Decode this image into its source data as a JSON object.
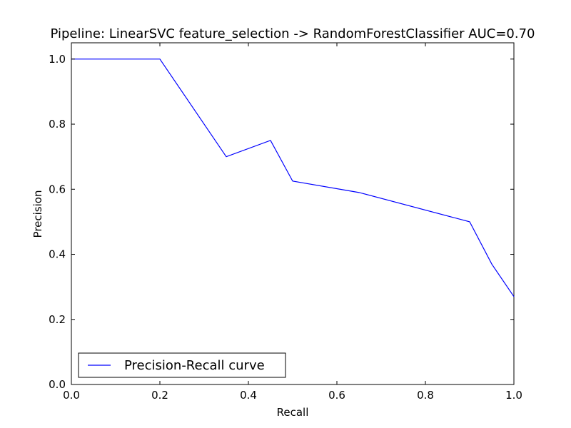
{
  "chart_data": {
    "type": "line",
    "title": "Pipeline: LinearSVC feature_selection -> RandomForestClassifier AUC=0.70",
    "xlabel": "Recall",
    "ylabel": "Precision",
    "xlim": [
      0.0,
      1.0
    ],
    "ylim": [
      0.0,
      1.05
    ],
    "xticks": [
      0.0,
      0.2,
      0.4,
      0.6,
      0.8,
      1.0
    ],
    "yticks": [
      0.0,
      0.2,
      0.4,
      0.6,
      0.8,
      1.0
    ],
    "xtick_labels": [
      "0.0",
      "0.2",
      "0.4",
      "0.6",
      "0.8",
      "1.0"
    ],
    "ytick_labels": [
      "0.0",
      "0.2",
      "0.4",
      "0.6",
      "0.8",
      "1.0"
    ],
    "grid": false,
    "legend_position": "lower-left",
    "series": [
      {
        "name": "Precision-Recall curve",
        "color": "#0000ff",
        "x": [
          0.0,
          0.2,
          0.35,
          0.45,
          0.5,
          0.65,
          0.9,
          0.95,
          1.0
        ],
        "y": [
          1.0,
          1.0,
          0.7,
          0.75,
          0.625,
          0.59,
          0.5,
          0.37,
          0.27
        ]
      }
    ]
  }
}
